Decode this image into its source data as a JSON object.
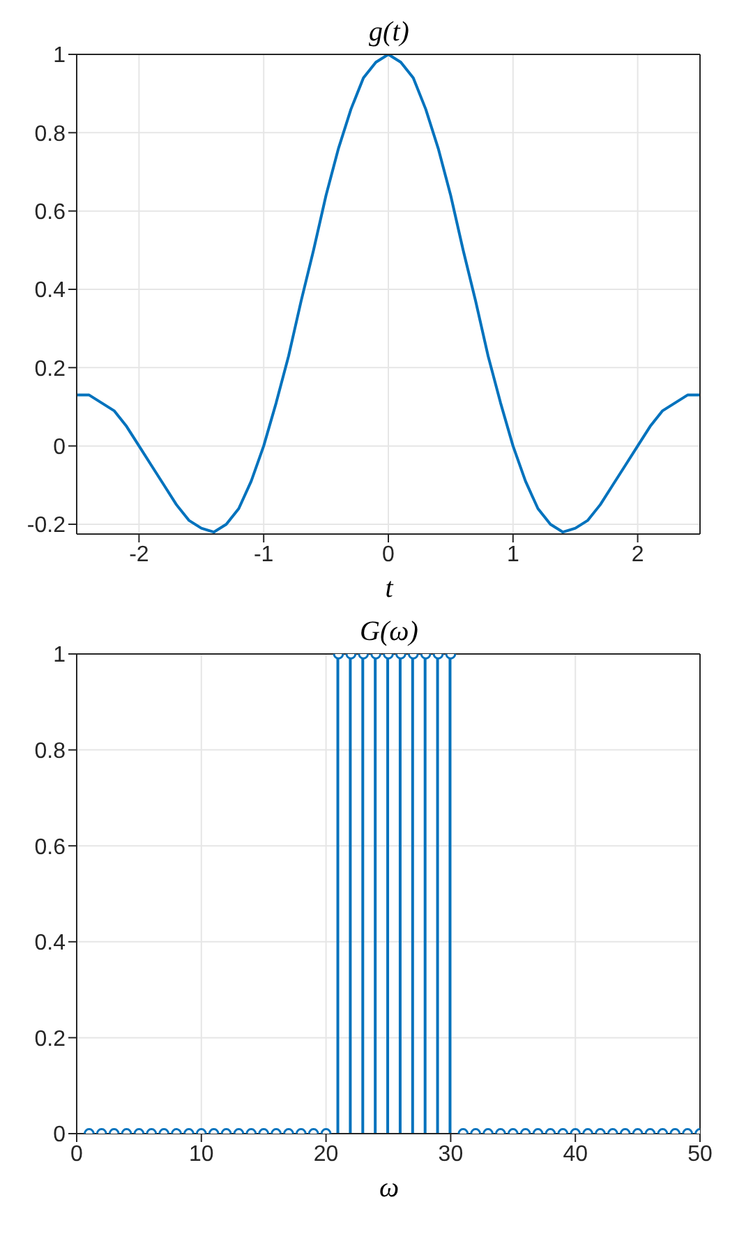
{
  "chart_data": [
    {
      "type": "line",
      "title": "g(t)",
      "xlabel": "t",
      "x": [
        -2.5,
        -2.4,
        -2.3,
        -2.2,
        -2.1,
        -2.0,
        -1.9,
        -1.8,
        -1.7,
        -1.6,
        -1.5,
        -1.4,
        -1.3,
        -1.2,
        -1.1,
        -1.0,
        -0.9,
        -0.8,
        -0.7,
        -0.6,
        -0.5,
        -0.4,
        -0.3,
        -0.2,
        -0.1,
        0,
        0.1,
        0.2,
        0.3,
        0.4,
        0.5,
        0.6,
        0.7,
        0.8,
        0.9,
        1.0,
        1.1,
        1.2,
        1.3,
        1.4,
        1.5,
        1.6,
        1.7,
        1.8,
        1.9,
        2.0,
        2.1,
        2.2,
        2.3,
        2.4,
        2.5
      ],
      "series": [
        {
          "color": "#0072bd",
          "values": [
            0.13,
            0.13,
            0.11,
            0.09,
            0.05,
            0,
            -0.05,
            -0.1,
            -0.15,
            -0.19,
            -0.21,
            -0.22,
            -0.2,
            -0.16,
            -0.09,
            0,
            0.11,
            0.23,
            0.37,
            0.5,
            0.64,
            0.76,
            0.86,
            0.94,
            0.98,
            1,
            0.98,
            0.94,
            0.86,
            0.76,
            0.64,
            0.5,
            0.37,
            0.23,
            0.11,
            0,
            -0.09,
            -0.16,
            -0.2,
            -0.22,
            -0.21,
            -0.19,
            -0.15,
            -0.1,
            -0.05,
            0,
            0.05,
            0.09,
            0.11,
            0.13,
            0.13
          ]
        }
      ],
      "xlim": [
        -2.5,
        2.5
      ],
      "xticks": [
        -2,
        -1,
        0,
        1,
        2
      ],
      "ylim": [
        -0.225,
        1
      ],
      "yticks": [
        -0.2,
        0,
        0.2,
        0.4,
        0.6,
        0.8,
        1
      ],
      "grid": true,
      "marker": "none",
      "line_style": "solid"
    },
    {
      "type": "lollipop",
      "title": "G(ω)",
      "xlabel": "ω",
      "x": [
        1,
        2,
        3,
        4,
        5,
        6,
        7,
        8,
        9,
        10,
        11,
        12,
        13,
        14,
        15,
        16,
        17,
        18,
        19,
        20,
        21,
        22,
        23,
        24,
        25,
        26,
        27,
        28,
        29,
        30,
        31,
        32,
        33,
        34,
        35,
        36,
        37,
        38,
        39,
        40,
        41,
        42,
        43,
        44,
        45,
        46,
        47,
        48,
        49,
        50
      ],
      "series": [
        {
          "color": "#0072bd",
          "values": [
            0,
            0,
            0,
            0,
            0,
            0,
            0,
            0,
            0,
            0,
            0,
            0,
            0,
            0,
            0,
            0,
            0,
            0,
            0,
            0,
            1,
            1,
            1,
            1,
            1,
            1,
            1,
            1,
            1,
            1,
            0,
            0,
            0,
            0,
            0,
            0,
            0,
            0,
            0,
            0,
            0,
            0,
            0,
            0,
            0,
            0,
            0,
            0,
            0,
            0
          ]
        }
      ],
      "xlim": [
        0,
        50
      ],
      "xticks": [
        0,
        10,
        20,
        30,
        40,
        50
      ],
      "ylim": [
        0,
        1
      ],
      "yticks": [
        0,
        0.2,
        0.4,
        0.6,
        0.8,
        1
      ],
      "grid": true,
      "marker": "circle"
    }
  ]
}
